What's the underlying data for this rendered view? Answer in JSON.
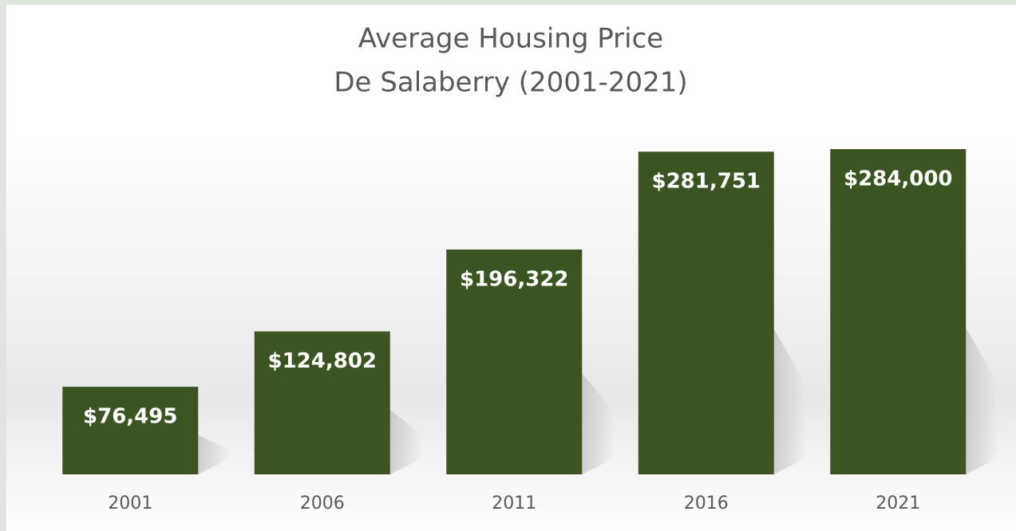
{
  "chart_data": {
    "type": "bar",
    "title": "Average Housing Price",
    "subtitle": "De Salaberry (2001-2021)",
    "categories": [
      "2001",
      "2006",
      "2011",
      "2016",
      "2021"
    ],
    "values": [
      76495,
      124802,
      196322,
      281751,
      284000
    ],
    "value_labels": [
      "$76,495",
      "$124,802",
      "$196,322",
      "$281,751",
      "$284,000"
    ],
    "color": "#3a5422",
    "grid": false
  }
}
